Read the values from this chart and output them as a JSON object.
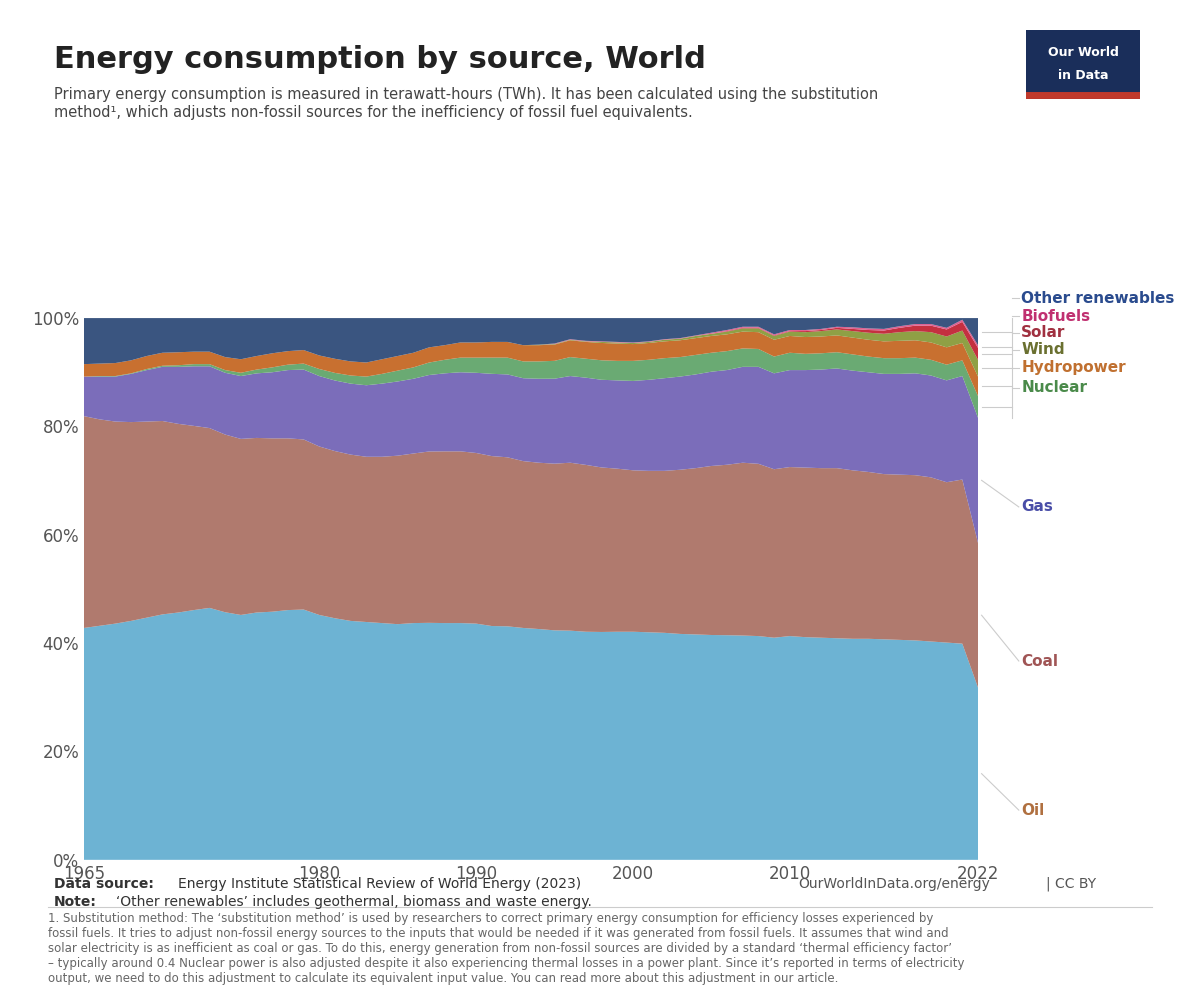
{
  "title": "Energy consumption by source, World",
  "subtitle": "Primary energy consumption is measured in terawatt-hours (TWh). It has been calculated using the substitution\nmethod¹, which adjusts non-fossil sources for the inefficiency of fossil fuel equivalents.",
  "years": [
    1965,
    1966,
    1967,
    1968,
    1969,
    1970,
    1971,
    1972,
    1973,
    1974,
    1975,
    1976,
    1977,
    1978,
    1979,
    1980,
    1981,
    1982,
    1983,
    1984,
    1985,
    1986,
    1987,
    1988,
    1989,
    1990,
    1991,
    1992,
    1993,
    1994,
    1995,
    1996,
    1997,
    1998,
    1999,
    2000,
    2001,
    2002,
    2003,
    2004,
    2005,
    2006,
    2007,
    2008,
    2009,
    2010,
    2011,
    2012,
    2013,
    2014,
    2015,
    2016,
    2017,
    2018,
    2019,
    2020,
    2021,
    2022
  ],
  "series": {
    "Oil": [
      0.428,
      0.432,
      0.436,
      0.441,
      0.447,
      0.453,
      0.456,
      0.461,
      0.465,
      0.457,
      0.452,
      0.456,
      0.458,
      0.461,
      0.462,
      0.452,
      0.445,
      0.441,
      0.439,
      0.437,
      0.435,
      0.437,
      0.437,
      0.437,
      0.437,
      0.436,
      0.432,
      0.431,
      0.428,
      0.426,
      0.424,
      0.423,
      0.421,
      0.421,
      0.421,
      0.421,
      0.42,
      0.419,
      0.417,
      0.416,
      0.415,
      0.415,
      0.414,
      0.413,
      0.41,
      0.413,
      0.411,
      0.41,
      0.409,
      0.408,
      0.408,
      0.407,
      0.406,
      0.405,
      0.403,
      0.401,
      0.399,
      0.318
    ],
    "Coal": [
      0.391,
      0.381,
      0.373,
      0.367,
      0.362,
      0.357,
      0.348,
      0.34,
      0.332,
      0.328,
      0.325,
      0.322,
      0.32,
      0.317,
      0.314,
      0.311,
      0.308,
      0.307,
      0.305,
      0.307,
      0.311,
      0.313,
      0.316,
      0.317,
      0.317,
      0.315,
      0.314,
      0.312,
      0.308,
      0.307,
      0.308,
      0.31,
      0.308,
      0.304,
      0.301,
      0.298,
      0.298,
      0.299,
      0.303,
      0.307,
      0.312,
      0.315,
      0.319,
      0.318,
      0.311,
      0.312,
      0.313,
      0.313,
      0.314,
      0.311,
      0.308,
      0.305,
      0.305,
      0.305,
      0.303,
      0.296,
      0.303,
      0.267
    ],
    "Gas": [
      0.073,
      0.079,
      0.083,
      0.089,
      0.095,
      0.1,
      0.105,
      0.11,
      0.114,
      0.114,
      0.116,
      0.119,
      0.122,
      0.126,
      0.129,
      0.13,
      0.13,
      0.131,
      0.132,
      0.135,
      0.137,
      0.138,
      0.141,
      0.144,
      0.146,
      0.148,
      0.152,
      0.153,
      0.153,
      0.155,
      0.157,
      0.16,
      0.161,
      0.162,
      0.163,
      0.165,
      0.168,
      0.171,
      0.172,
      0.173,
      0.174,
      0.175,
      0.177,
      0.179,
      0.177,
      0.179,
      0.18,
      0.182,
      0.184,
      0.184,
      0.184,
      0.185,
      0.186,
      0.188,
      0.188,
      0.188,
      0.191,
      0.231
    ],
    "Nuclear": [
      0.0,
      0.001,
      0.001,
      0.001,
      0.002,
      0.002,
      0.003,
      0.004,
      0.004,
      0.005,
      0.006,
      0.007,
      0.009,
      0.01,
      0.011,
      0.013,
      0.014,
      0.015,
      0.016,
      0.018,
      0.02,
      0.021,
      0.023,
      0.025,
      0.027,
      0.028,
      0.03,
      0.031,
      0.031,
      0.032,
      0.033,
      0.035,
      0.035,
      0.036,
      0.036,
      0.037,
      0.037,
      0.037,
      0.036,
      0.036,
      0.035,
      0.035,
      0.034,
      0.033,
      0.031,
      0.032,
      0.03,
      0.03,
      0.03,
      0.03,
      0.029,
      0.029,
      0.029,
      0.029,
      0.029,
      0.029,
      0.029,
      0.04
    ],
    "Hydropower": [
      0.023,
      0.023,
      0.024,
      0.024,
      0.024,
      0.024,
      0.024,
      0.023,
      0.023,
      0.024,
      0.025,
      0.025,
      0.026,
      0.025,
      0.025,
      0.025,
      0.026,
      0.026,
      0.026,
      0.027,
      0.027,
      0.027,
      0.028,
      0.027,
      0.028,
      0.028,
      0.029,
      0.029,
      0.03,
      0.03,
      0.03,
      0.031,
      0.031,
      0.032,
      0.032,
      0.031,
      0.031,
      0.031,
      0.031,
      0.031,
      0.031,
      0.031,
      0.031,
      0.031,
      0.031,
      0.031,
      0.031,
      0.031,
      0.031,
      0.031,
      0.031,
      0.031,
      0.032,
      0.032,
      0.032,
      0.032,
      0.032,
      0.036
    ],
    "Wind": [
      0.0,
      0.0,
      0.0,
      0.0,
      0.0,
      0.0,
      0.0,
      0.0,
      0.0,
      0.0,
      0.0,
      0.0,
      0.0,
      0.0,
      0.0,
      0.0,
      0.0,
      0.0,
      0.0,
      0.0,
      0.0,
      0.0,
      0.0,
      0.0,
      0.0,
      0.0,
      0.0,
      0.0,
      0.0,
      0.001,
      0.001,
      0.001,
      0.001,
      0.002,
      0.002,
      0.002,
      0.002,
      0.003,
      0.003,
      0.004,
      0.004,
      0.005,
      0.006,
      0.007,
      0.007,
      0.008,
      0.009,
      0.01,
      0.011,
      0.012,
      0.013,
      0.014,
      0.016,
      0.017,
      0.019,
      0.02,
      0.023,
      0.031
    ],
    "Solar": [
      0.0,
      0.0,
      0.0,
      0.0,
      0.0,
      0.0,
      0.0,
      0.0,
      0.0,
      0.0,
      0.0,
      0.0,
      0.0,
      0.0,
      0.0,
      0.0,
      0.0,
      0.0,
      0.0,
      0.0,
      0.0,
      0.0,
      0.0,
      0.0,
      0.0,
      0.0,
      0.0,
      0.0,
      0.0,
      0.0,
      0.0,
      0.0,
      0.0,
      0.0,
      0.0,
      0.0,
      0.0,
      0.0,
      0.0,
      0.0,
      0.0,
      0.001,
      0.001,
      0.001,
      0.001,
      0.001,
      0.002,
      0.002,
      0.003,
      0.004,
      0.005,
      0.006,
      0.008,
      0.01,
      0.012,
      0.013,
      0.016,
      0.022
    ],
    "Biofuels": [
      0.0,
      0.0,
      0.0,
      0.0,
      0.0,
      0.0,
      0.0,
      0.0,
      0.0,
      0.0,
      0.0,
      0.0,
      0.0,
      0.0,
      0.0,
      0.0,
      0.0,
      0.0,
      0.0,
      0.0,
      0.0,
      0.0,
      0.0,
      0.0,
      0.0,
      0.0,
      0.0,
      0.0,
      0.0,
      0.0,
      0.001,
      0.001,
      0.001,
      0.001,
      0.001,
      0.001,
      0.001,
      0.001,
      0.001,
      0.001,
      0.002,
      0.002,
      0.002,
      0.002,
      0.002,
      0.002,
      0.002,
      0.002,
      0.002,
      0.003,
      0.003,
      0.003,
      0.003,
      0.003,
      0.003,
      0.003,
      0.004,
      0.005
    ],
    "Other renewables": [
      0.085,
      0.084,
      0.083,
      0.078,
      0.07,
      0.064,
      0.063,
      0.062,
      0.062,
      0.072,
      0.076,
      0.07,
      0.065,
      0.061,
      0.059,
      0.069,
      0.075,
      0.08,
      0.082,
      0.076,
      0.07,
      0.064,
      0.054,
      0.05,
      0.045,
      0.045,
      0.044,
      0.044,
      0.05,
      0.049,
      0.047,
      0.039,
      0.042,
      0.043,
      0.044,
      0.045,
      0.043,
      0.039,
      0.037,
      0.032,
      0.027,
      0.022,
      0.016,
      0.016,
      0.03,
      0.022,
      0.022,
      0.02,
      0.016,
      0.017,
      0.019,
      0.02,
      0.015,
      0.011,
      0.011,
      0.018,
      0.003,
      0.05
    ]
  },
  "colors_map": {
    "Oil": "#6db3d3",
    "Coal": "#b07a6e",
    "Gas": "#7b6dba",
    "Nuclear": "#6aaa73",
    "Hydropower": "#c87030",
    "Wind": "#8fa045",
    "Solar": "#c43040",
    "Biofuels": "#e06090",
    "Other renewables": "#3a5580"
  },
  "label_colors": {
    "Oil": "#b07040",
    "Coal": "#a05555",
    "Gas": "#4a4ea8",
    "Nuclear": "#4a8a4a",
    "Hydropower": "#c07030",
    "Wind": "#6a7030",
    "Solar": "#a03040",
    "Biofuels": "#c03070",
    "Other renewables": "#2a4b8e"
  },
  "series_order": [
    "Oil",
    "Coal",
    "Gas",
    "Nuclear",
    "Hydropower",
    "Wind",
    "Solar",
    "Biofuels",
    "Other renewables"
  ],
  "x_ticks": [
    1965,
    1980,
    1990,
    2000,
    2010,
    2022
  ],
  "y_ticks": [
    0,
    20,
    40,
    60,
    80,
    100
  ],
  "bg_color": "#ffffff",
  "plot_bg_color": "#f0f4f8",
  "owid_box_bg": "#1a2e5a",
  "owid_box_red": "#c0392b"
}
